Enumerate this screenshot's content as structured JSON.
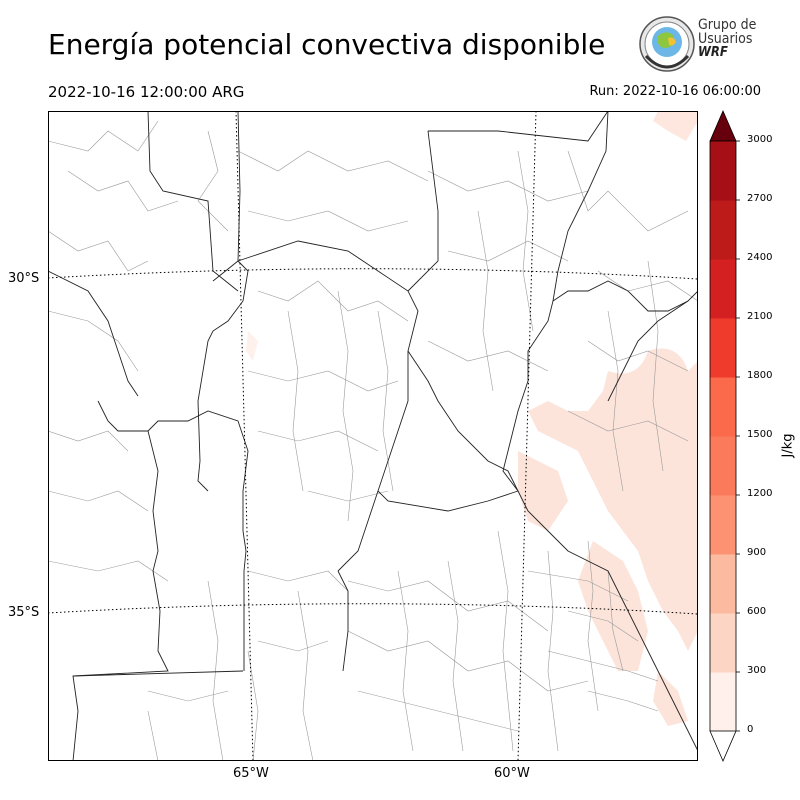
{
  "header": {
    "title": "Energía potencial convectiva disponible",
    "valid_time": "2022-10-16 12:00:00 ARG",
    "run_time": "Run: 2022-10-16 06:00:00"
  },
  "logo": {
    "line1": "Grupo de",
    "line2": "Usuarios",
    "line3": "WRF"
  },
  "map": {
    "lat_labels": [
      "30°S",
      "35°S"
    ],
    "lon_labels": [
      "65°W",
      "60°W"
    ]
  },
  "colorbar": {
    "unit": "J/kg",
    "ticks": [
      "0",
      "300",
      "600",
      "900",
      "1200",
      "1500",
      "1800",
      "2100",
      "2400",
      "2700",
      "3000"
    ],
    "colors": [
      "#fff0eb",
      "#fdd5c5",
      "#fcbba1",
      "#fc9272",
      "#fb7a5c",
      "#fb6a4a",
      "#ef3b2c",
      "#d42020",
      "#bd1a1a",
      "#a50f15",
      "#7d0810"
    ],
    "extend_color": "#67000d"
  }
}
